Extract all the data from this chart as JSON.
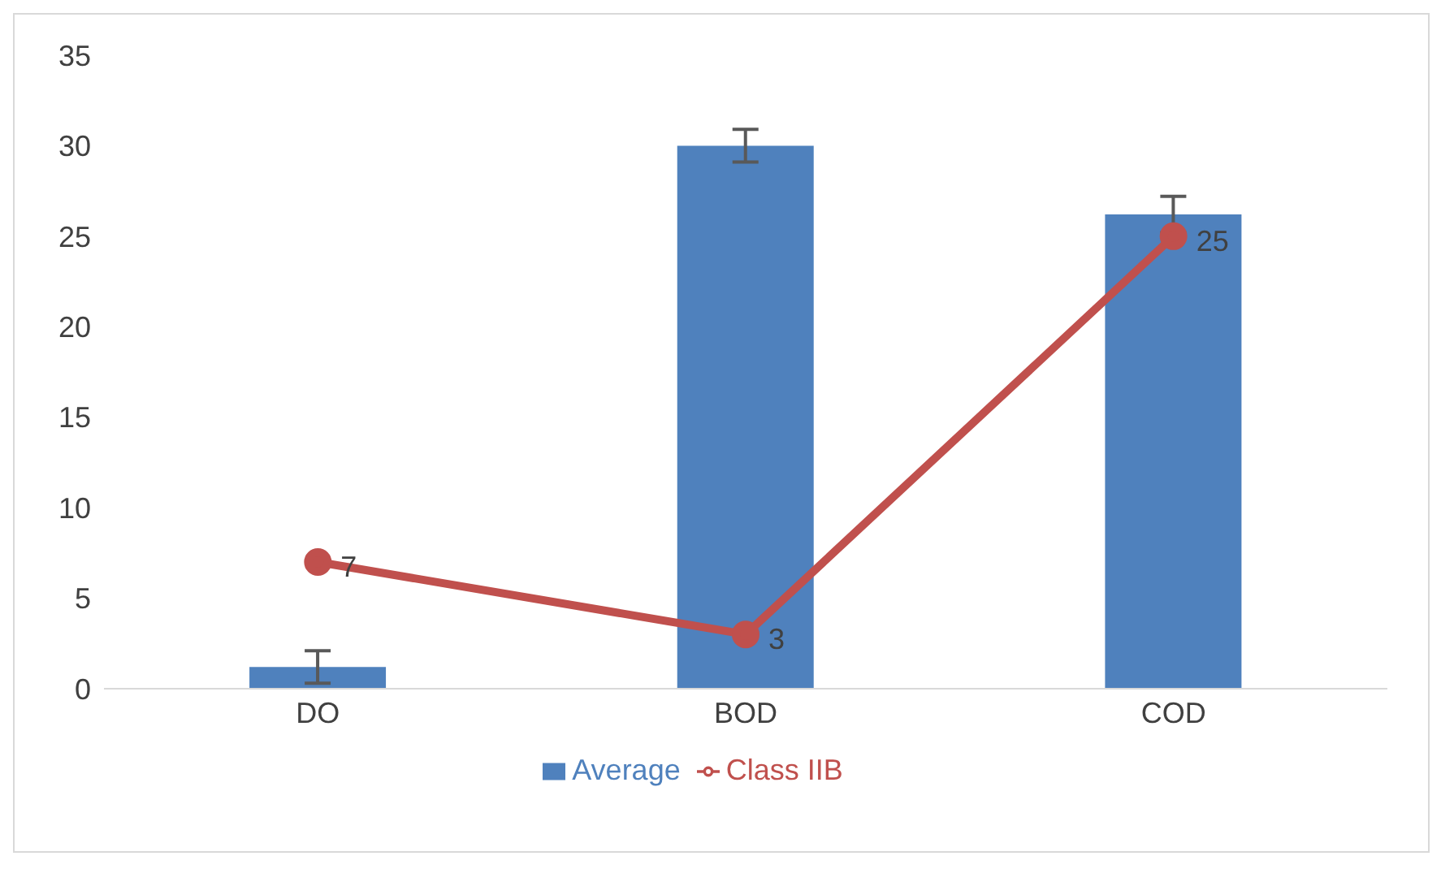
{
  "chart_data": {
    "type": "bar",
    "categories": [
      "DO",
      "BOD",
      "COD"
    ],
    "series": [
      {
        "name": "Average",
        "color": "#4f81bd",
        "values": [
          1.2,
          30,
          26.2
        ],
        "errors": [
          0.9,
          0.9,
          1.0
        ]
      },
      {
        "name": "Class IIB",
        "type": "line",
        "color": "#c0504d",
        "values": [
          7,
          3,
          25
        ],
        "value_labels": [
          "7",
          "3",
          "25"
        ]
      }
    ],
    "ylim": [
      0,
      35
    ],
    "yticks": [
      0,
      5,
      10,
      15,
      20,
      25,
      30,
      35
    ],
    "legend": "bottom",
    "marker": "circle"
  }
}
